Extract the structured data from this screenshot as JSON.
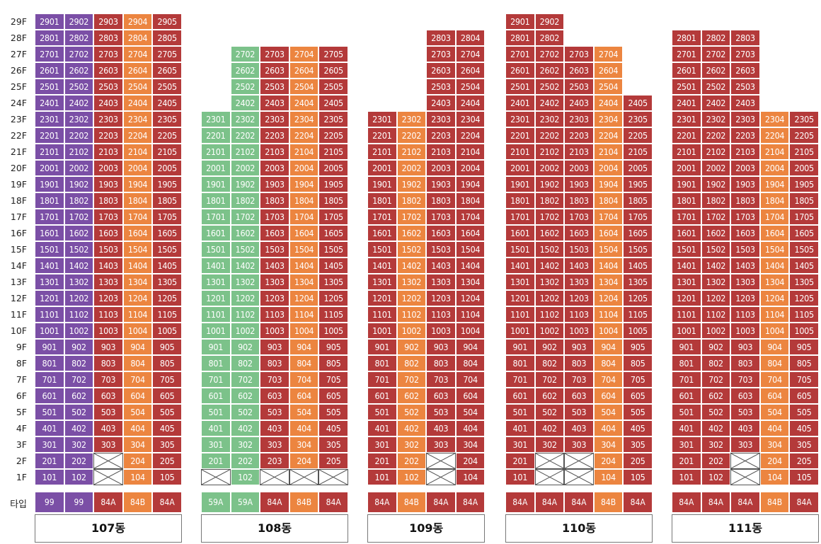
{
  "type_label": "타입",
  "colors": {
    "purple": "#7b4fa6",
    "red": "#b43a3a",
    "orange": "#ec8540",
    "green": "#7cc28a"
  },
  "floor_labels": [
    "1F",
    "2F",
    "3F",
    "4F",
    "5F",
    "6F",
    "7F",
    "8F",
    "9F",
    "10F",
    "11F",
    "12F",
    "13F",
    "14F",
    "15F",
    "16F",
    "17F",
    "18F",
    "19F",
    "20F",
    "21F",
    "22F",
    "23F",
    "24F",
    "25F",
    "26F",
    "27F",
    "28F",
    "29F"
  ],
  "buildings": [
    {
      "name": "107동",
      "columns": [
        {
          "line": 1,
          "type": "99",
          "color": "purple",
          "floors": [
            1,
            29
          ],
          "empty": []
        },
        {
          "line": 2,
          "type": "99",
          "color": "purple",
          "floors": [
            1,
            29
          ],
          "empty": []
        },
        {
          "line": 3,
          "type": "84A",
          "color": "red",
          "floors": [
            1,
            29
          ],
          "empty": [
            1,
            2
          ]
        },
        {
          "line": 4,
          "type": "84B",
          "color": "orange",
          "floors": [
            1,
            29
          ],
          "empty": []
        },
        {
          "line": 5,
          "type": "84A",
          "color": "red",
          "floors": [
            1,
            29
          ],
          "empty": []
        }
      ]
    },
    {
      "name": "108동",
      "columns": [
        {
          "line": 1,
          "type": "59A",
          "color": "green",
          "floors": [
            1,
            23
          ],
          "empty": [
            1
          ]
        },
        {
          "line": 2,
          "type": "59A",
          "color": "green",
          "floors": [
            1,
            27
          ],
          "empty": []
        },
        {
          "line": 3,
          "type": "84A",
          "color": "red",
          "floors": [
            1,
            27
          ],
          "empty": [
            1
          ]
        },
        {
          "line": 4,
          "type": "84B",
          "color": "orange",
          "floors": [
            1,
            27
          ],
          "empty": [
            1
          ]
        },
        {
          "line": 5,
          "type": "84A",
          "color": "red",
          "floors": [
            1,
            27
          ],
          "empty": [
            1
          ]
        }
      ]
    },
    {
      "name": "109동",
      "columns": [
        {
          "line": 1,
          "type": "84A",
          "color": "red",
          "floors": [
            1,
            23
          ],
          "empty": []
        },
        {
          "line": 2,
          "type": "84B",
          "color": "orange",
          "floors": [
            1,
            23
          ],
          "empty": []
        },
        {
          "line": 3,
          "type": "84A",
          "color": "red",
          "floors": [
            1,
            28
          ],
          "empty": [
            1,
            2
          ]
        },
        {
          "line": 4,
          "type": "84A",
          "color": "red",
          "floors": [
            1,
            28
          ],
          "empty": []
        }
      ]
    },
    {
      "name": "110동",
      "columns": [
        {
          "line": 1,
          "type": "84A",
          "color": "red",
          "floors": [
            1,
            29
          ],
          "empty": []
        },
        {
          "line": 2,
          "type": "84A",
          "color": "red",
          "floors": [
            1,
            29
          ],
          "empty": [
            1,
            2
          ]
        },
        {
          "line": 3,
          "type": "84A",
          "color": "red",
          "floors": [
            1,
            27
          ],
          "empty": [
            1,
            2
          ]
        },
        {
          "line": 4,
          "type": "84B",
          "color": "orange",
          "floors": [
            1,
            27
          ],
          "empty": []
        },
        {
          "line": 5,
          "type": "84A",
          "color": "red",
          "floors": [
            1,
            24
          ],
          "empty": []
        }
      ]
    },
    {
      "name": "111동",
      "columns": [
        {
          "line": 1,
          "type": "84A",
          "color": "red",
          "floors": [
            1,
            28
          ],
          "empty": []
        },
        {
          "line": 2,
          "type": "84A",
          "color": "red",
          "floors": [
            1,
            28
          ],
          "empty": []
        },
        {
          "line": 3,
          "type": "84A",
          "color": "red",
          "floors": [
            1,
            28
          ],
          "empty": [
            1,
            2
          ]
        },
        {
          "line": 4,
          "type": "84B",
          "color": "orange",
          "floors": [
            1,
            23
          ],
          "empty": []
        },
        {
          "line": 5,
          "type": "84A",
          "color": "red",
          "floors": [
            1,
            23
          ],
          "empty": []
        }
      ]
    }
  ]
}
